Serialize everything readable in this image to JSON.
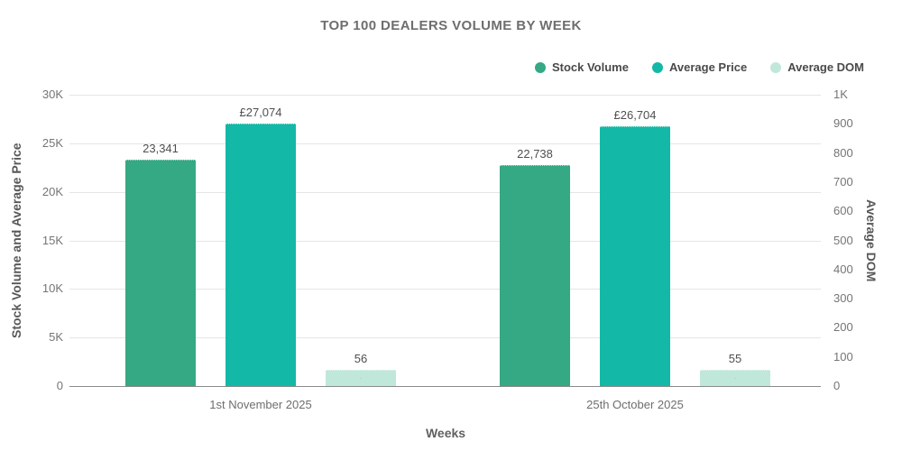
{
  "title": "TOP 100 DEALERS VOLUME BY WEEK",
  "colors": {
    "stock_volume": "#35a884",
    "average_price": "#14b8a6",
    "average_dom": "#bfe8da",
    "gridline": "#e5e5e5",
    "baseline": "#8a8a8a"
  },
  "chart_data": {
    "type": "bar",
    "title": "TOP 100 DEALERS VOLUME BY WEEK",
    "categories": [
      "1st November 2025",
      "25th October 2025"
    ],
    "series": [
      {
        "name": "Stock Volume",
        "axis": "left",
        "color": "#35a884",
        "values": [
          23341,
          22738
        ],
        "labels": [
          "23,341",
          "22,738"
        ],
        "pattern": "none"
      },
      {
        "name": "Average Price",
        "axis": "left",
        "color": "#14b8a6",
        "values": [
          27074,
          26704
        ],
        "labels": [
          "£27,074",
          "£26,704"
        ],
        "pattern": "none"
      },
      {
        "name": "Average DOM",
        "axis": "right",
        "color": "#bfe8da",
        "values": [
          56,
          55
        ],
        "labels": [
          "56",
          "55"
        ],
        "pattern": "dots"
      }
    ],
    "xlabel": "Weeks",
    "ylabel_left": "Stock Volume and Average Price",
    "ylabel_right": "Average DOM",
    "left_axis": {
      "min": 0,
      "max": 30000,
      "ticks": [
        "30K",
        "25K",
        "20K",
        "15K",
        "10K",
        "5K",
        "0"
      ]
    },
    "right_axis": {
      "min": 0,
      "max": 1000,
      "ticks": [
        "1K",
        "900",
        "800",
        "700",
        "600",
        "500",
        "400",
        "300",
        "200",
        "100",
        "0"
      ]
    },
    "grid": true,
    "legend_position": "top-right"
  }
}
